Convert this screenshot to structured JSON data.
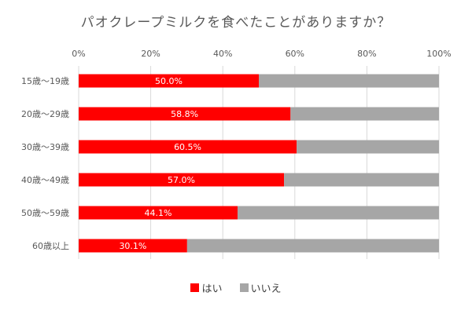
{
  "chart_data": {
    "type": "bar",
    "orientation": "horizontal",
    "stacked": "percent",
    "title": "パオクレープミルクを食べたことがありますか？",
    "categories": [
      "15歳〜19歳",
      "20歳〜29歳",
      "30歳〜39歳",
      "40歳〜49歳",
      "50歳〜59歳",
      "60歳以上"
    ],
    "series": [
      {
        "name": "はい",
        "color": "#ff0000",
        "values": [
          50.0,
          58.8,
          60.5,
          57.0,
          44.1,
          30.1
        ],
        "labels": [
          "50.0%",
          "58.8%",
          "60.5%",
          "57.0%",
          "44.1%",
          "30.1%"
        ]
      },
      {
        "name": "いいえ",
        "color": "#a6a6a6",
        "values": [
          50.0,
          41.2,
          39.5,
          43.0,
          55.9,
          69.9
        ]
      }
    ],
    "xlim": [
      0,
      100
    ],
    "xticks": [
      "0%",
      "20%",
      "40%",
      "60%",
      "80%",
      "100%"
    ],
    "axis_position": "top",
    "grid": true,
    "legend": "bottom"
  }
}
